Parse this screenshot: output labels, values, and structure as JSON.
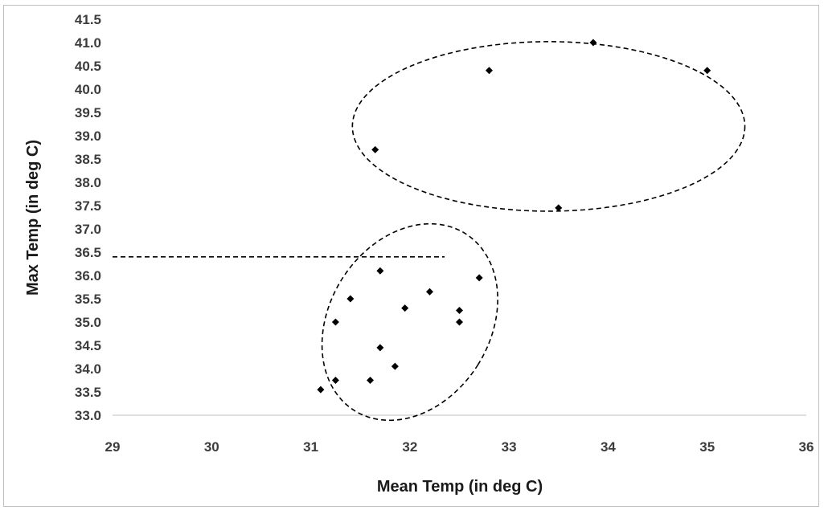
{
  "chart_data": {
    "type": "scatter",
    "title": "",
    "xlabel": "Mean Temp (in deg C)",
    "ylabel": "Max Temp (in deg C)",
    "xlim": [
      29,
      36
    ],
    "ylim": [
      33.0,
      41.5
    ],
    "xticks": [
      "29",
      "30",
      "31",
      "32",
      "33",
      "34",
      "35",
      "36"
    ],
    "yticks": [
      "33.0",
      "33.5",
      "34.0",
      "34.5",
      "35.0",
      "35.5",
      "36.0",
      "36.5",
      "37.0",
      "37.5",
      "38.0",
      "38.5",
      "39.0",
      "39.5",
      "40.0",
      "40.5",
      "41.0",
      "41.5"
    ],
    "grid": false,
    "marker": "diamond",
    "marker_color": "#000000",
    "series": [
      {
        "points": [
          {
            "x": 31.1,
            "y": 33.55
          },
          {
            "x": 31.25,
            "y": 33.75
          },
          {
            "x": 31.6,
            "y": 33.75
          },
          {
            "x": 31.85,
            "y": 34.05
          },
          {
            "x": 31.7,
            "y": 34.45
          },
          {
            "x": 31.25,
            "y": 35.0
          },
          {
            "x": 31.4,
            "y": 35.5
          },
          {
            "x": 31.95,
            "y": 35.3
          },
          {
            "x": 31.7,
            "y": 36.1
          },
          {
            "x": 32.2,
            "y": 35.65
          },
          {
            "x": 32.5,
            "y": 35.25
          },
          {
            "x": 32.5,
            "y": 35.0
          },
          {
            "x": 32.7,
            "y": 35.95
          },
          {
            "x": 31.65,
            "y": 38.7
          },
          {
            "x": 32.8,
            "y": 40.4
          },
          {
            "x": 33.85,
            "y": 41.0
          },
          {
            "x": 35.0,
            "y": 40.4
          },
          {
            "x": 33.5,
            "y": 37.45
          }
        ]
      }
    ],
    "annotations": [
      {
        "kind": "dashed-hline",
        "y": 36.4,
        "x_from": 29,
        "x_to": 32.35
      },
      {
        "kind": "dashed-ellipse",
        "cx": 32.0,
        "cy": 35.0,
        "rx": 0.7,
        "ry": 1.75,
        "rotation_deg": 0,
        "note": "lower cluster"
      },
      {
        "kind": "dashed-ellipse",
        "cx": 33.4,
        "cy": 39.2,
        "rx": 1.98,
        "ry": 1.82,
        "rotation_deg": 0,
        "note": "upper cluster"
      }
    ]
  }
}
